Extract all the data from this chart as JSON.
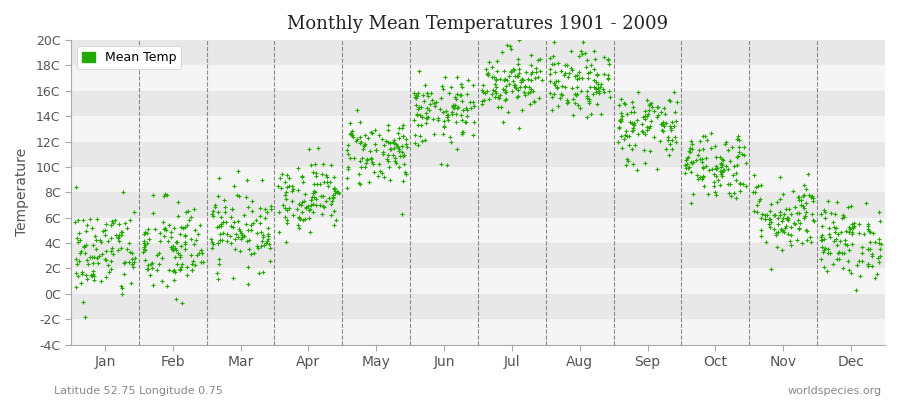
{
  "title": "Monthly Mean Temperatures 1901 - 2009",
  "ylabel": "Temperature",
  "xlabel_bottom_left": "Latitude 52.75 Longitude 0.75",
  "xlabel_bottom_right": "worldspecies.org",
  "legend_label": "Mean Temp",
  "dot_color": "#22aa00",
  "background_color": "#ffffff",
  "plot_bg_color": "#ffffff",
  "band_color_light": "#f5f5f5",
  "band_color_dark": "#e8e8e8",
  "ylim": [
    -4,
    20
  ],
  "yticks": [
    -4,
    -2,
    0,
    2,
    4,
    6,
    8,
    10,
    12,
    14,
    16,
    18,
    20
  ],
  "ytick_labels": [
    "-4C",
    "-2C",
    "0C",
    "2C",
    "4C",
    "6C",
    "8C",
    "10C",
    "12C",
    "14C",
    "16C",
    "18C",
    "20C"
  ],
  "months": [
    "Jan",
    "Feb",
    "Mar",
    "Apr",
    "May",
    "Jun",
    "Jul",
    "Aug",
    "Sep",
    "Oct",
    "Nov",
    "Dec"
  ],
  "mean_temps": [
    3.2,
    3.5,
    5.2,
    7.8,
    11.2,
    14.2,
    16.8,
    16.5,
    13.2,
    10.2,
    6.2,
    4.2
  ],
  "std_temps": [
    1.9,
    2.0,
    1.6,
    1.4,
    1.4,
    1.4,
    1.3,
    1.3,
    1.5,
    1.4,
    1.5,
    1.5
  ],
  "n_points": 109,
  "seed": 42,
  "dot_size": 6
}
